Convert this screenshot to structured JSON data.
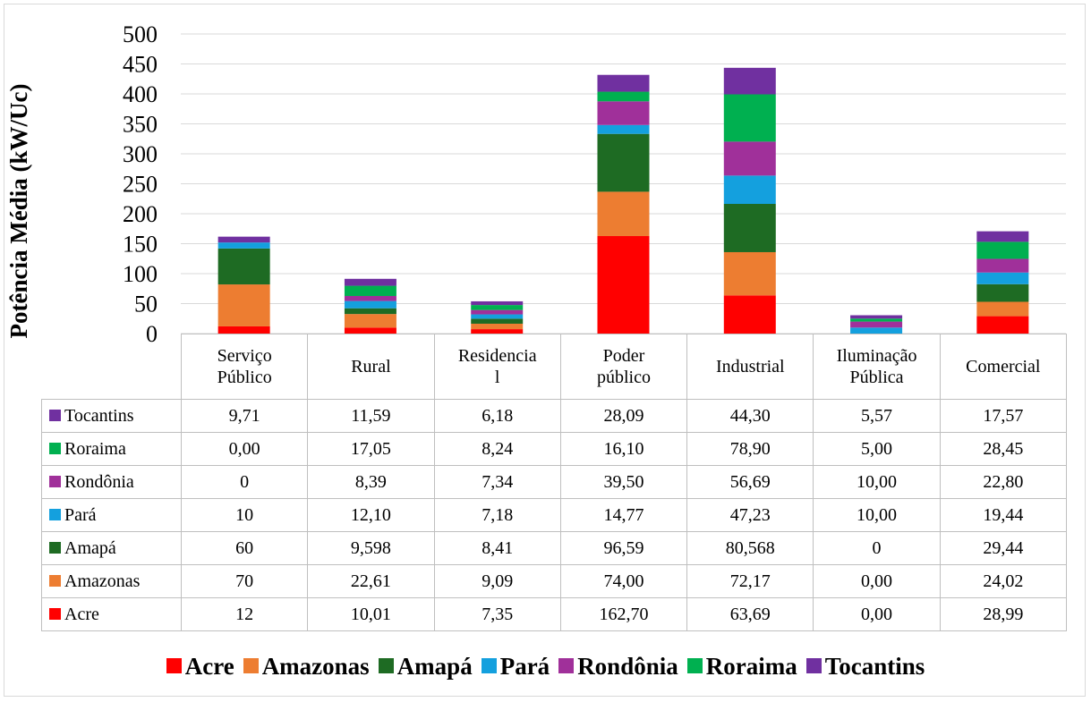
{
  "chart_data": {
    "type": "bar",
    "stacked": true,
    "title": "",
    "xlabel": "",
    "ylabel": "Potência Média (kW/Uc)",
    "ylim": [
      0,
      500
    ],
    "yticks": [
      0,
      50,
      100,
      150,
      200,
      250,
      300,
      350,
      400,
      450,
      500
    ],
    "grid": true,
    "legend_position": "bottom",
    "categories": [
      {
        "line1": "Serviço",
        "line2": "Público"
      },
      {
        "line1": "Rural",
        "line2": ""
      },
      {
        "line1": "Residencia",
        "line2": "l"
      },
      {
        "line1": "Poder",
        "line2": "público"
      },
      {
        "line1": "Industrial",
        "line2": ""
      },
      {
        "line1": "Iluminação",
        "line2": "Pública"
      },
      {
        "line1": "Comercial",
        "line2": ""
      }
    ],
    "series": [
      {
        "name": "Acre",
        "color": "#ff0000",
        "values": [
          12,
          10.01,
          7.35,
          162.7,
          63.69,
          0.0,
          28.99
        ],
        "labels": [
          "12",
          "10,01",
          "7,35",
          "162,70",
          "63,69",
          "0,00",
          "28,99"
        ]
      },
      {
        "name": "Amazonas",
        "color": "#ed7d31",
        "values": [
          70,
          22.61,
          9.09,
          74.0,
          72.17,
          0.0,
          24.02
        ],
        "labels": [
          "70",
          "22,61",
          "9,09",
          "74,00",
          "72,17",
          "0,00",
          "24,02"
        ]
      },
      {
        "name": "Amapá",
        "color": "#1e6b23",
        "values": [
          60,
          9.598,
          8.41,
          96.59,
          80.568,
          0,
          29.44
        ],
        "labels": [
          "60",
          "9,598",
          "8,41",
          "96,59",
          "80,568",
          "0",
          "29,44"
        ]
      },
      {
        "name": "Pará",
        "color": "#14a0de",
        "values": [
          10,
          12.1,
          7.18,
          14.77,
          47.23,
          10.0,
          19.44
        ],
        "labels": [
          "10",
          "12,10",
          "7,18",
          "14,77",
          "47,23",
          "10,00",
          "19,44"
        ]
      },
      {
        "name": "Rondônia",
        "color": "#a0309a",
        "values": [
          0,
          8.39,
          7.34,
          39.5,
          56.69,
          10.0,
          22.8
        ],
        "labels": [
          "0",
          "8,39",
          "7,34",
          "39,50",
          "56,69",
          "10,00",
          "22,80"
        ]
      },
      {
        "name": "Roraima",
        "color": "#00b050",
        "values": [
          0.0,
          17.05,
          8.24,
          16.1,
          78.9,
          5.0,
          28.45
        ],
        "labels": [
          "0,00",
          "17,05",
          "8,24",
          "16,10",
          "78,90",
          "5,00",
          "28,45"
        ]
      },
      {
        "name": "Tocantins",
        "color": "#7030a0",
        "values": [
          9.71,
          11.59,
          6.18,
          28.09,
          44.3,
          5.57,
          17.57
        ],
        "labels": [
          "9,71",
          "11,59",
          "6,18",
          "28,09",
          "44,30",
          "5,57",
          "17,57"
        ]
      }
    ]
  }
}
